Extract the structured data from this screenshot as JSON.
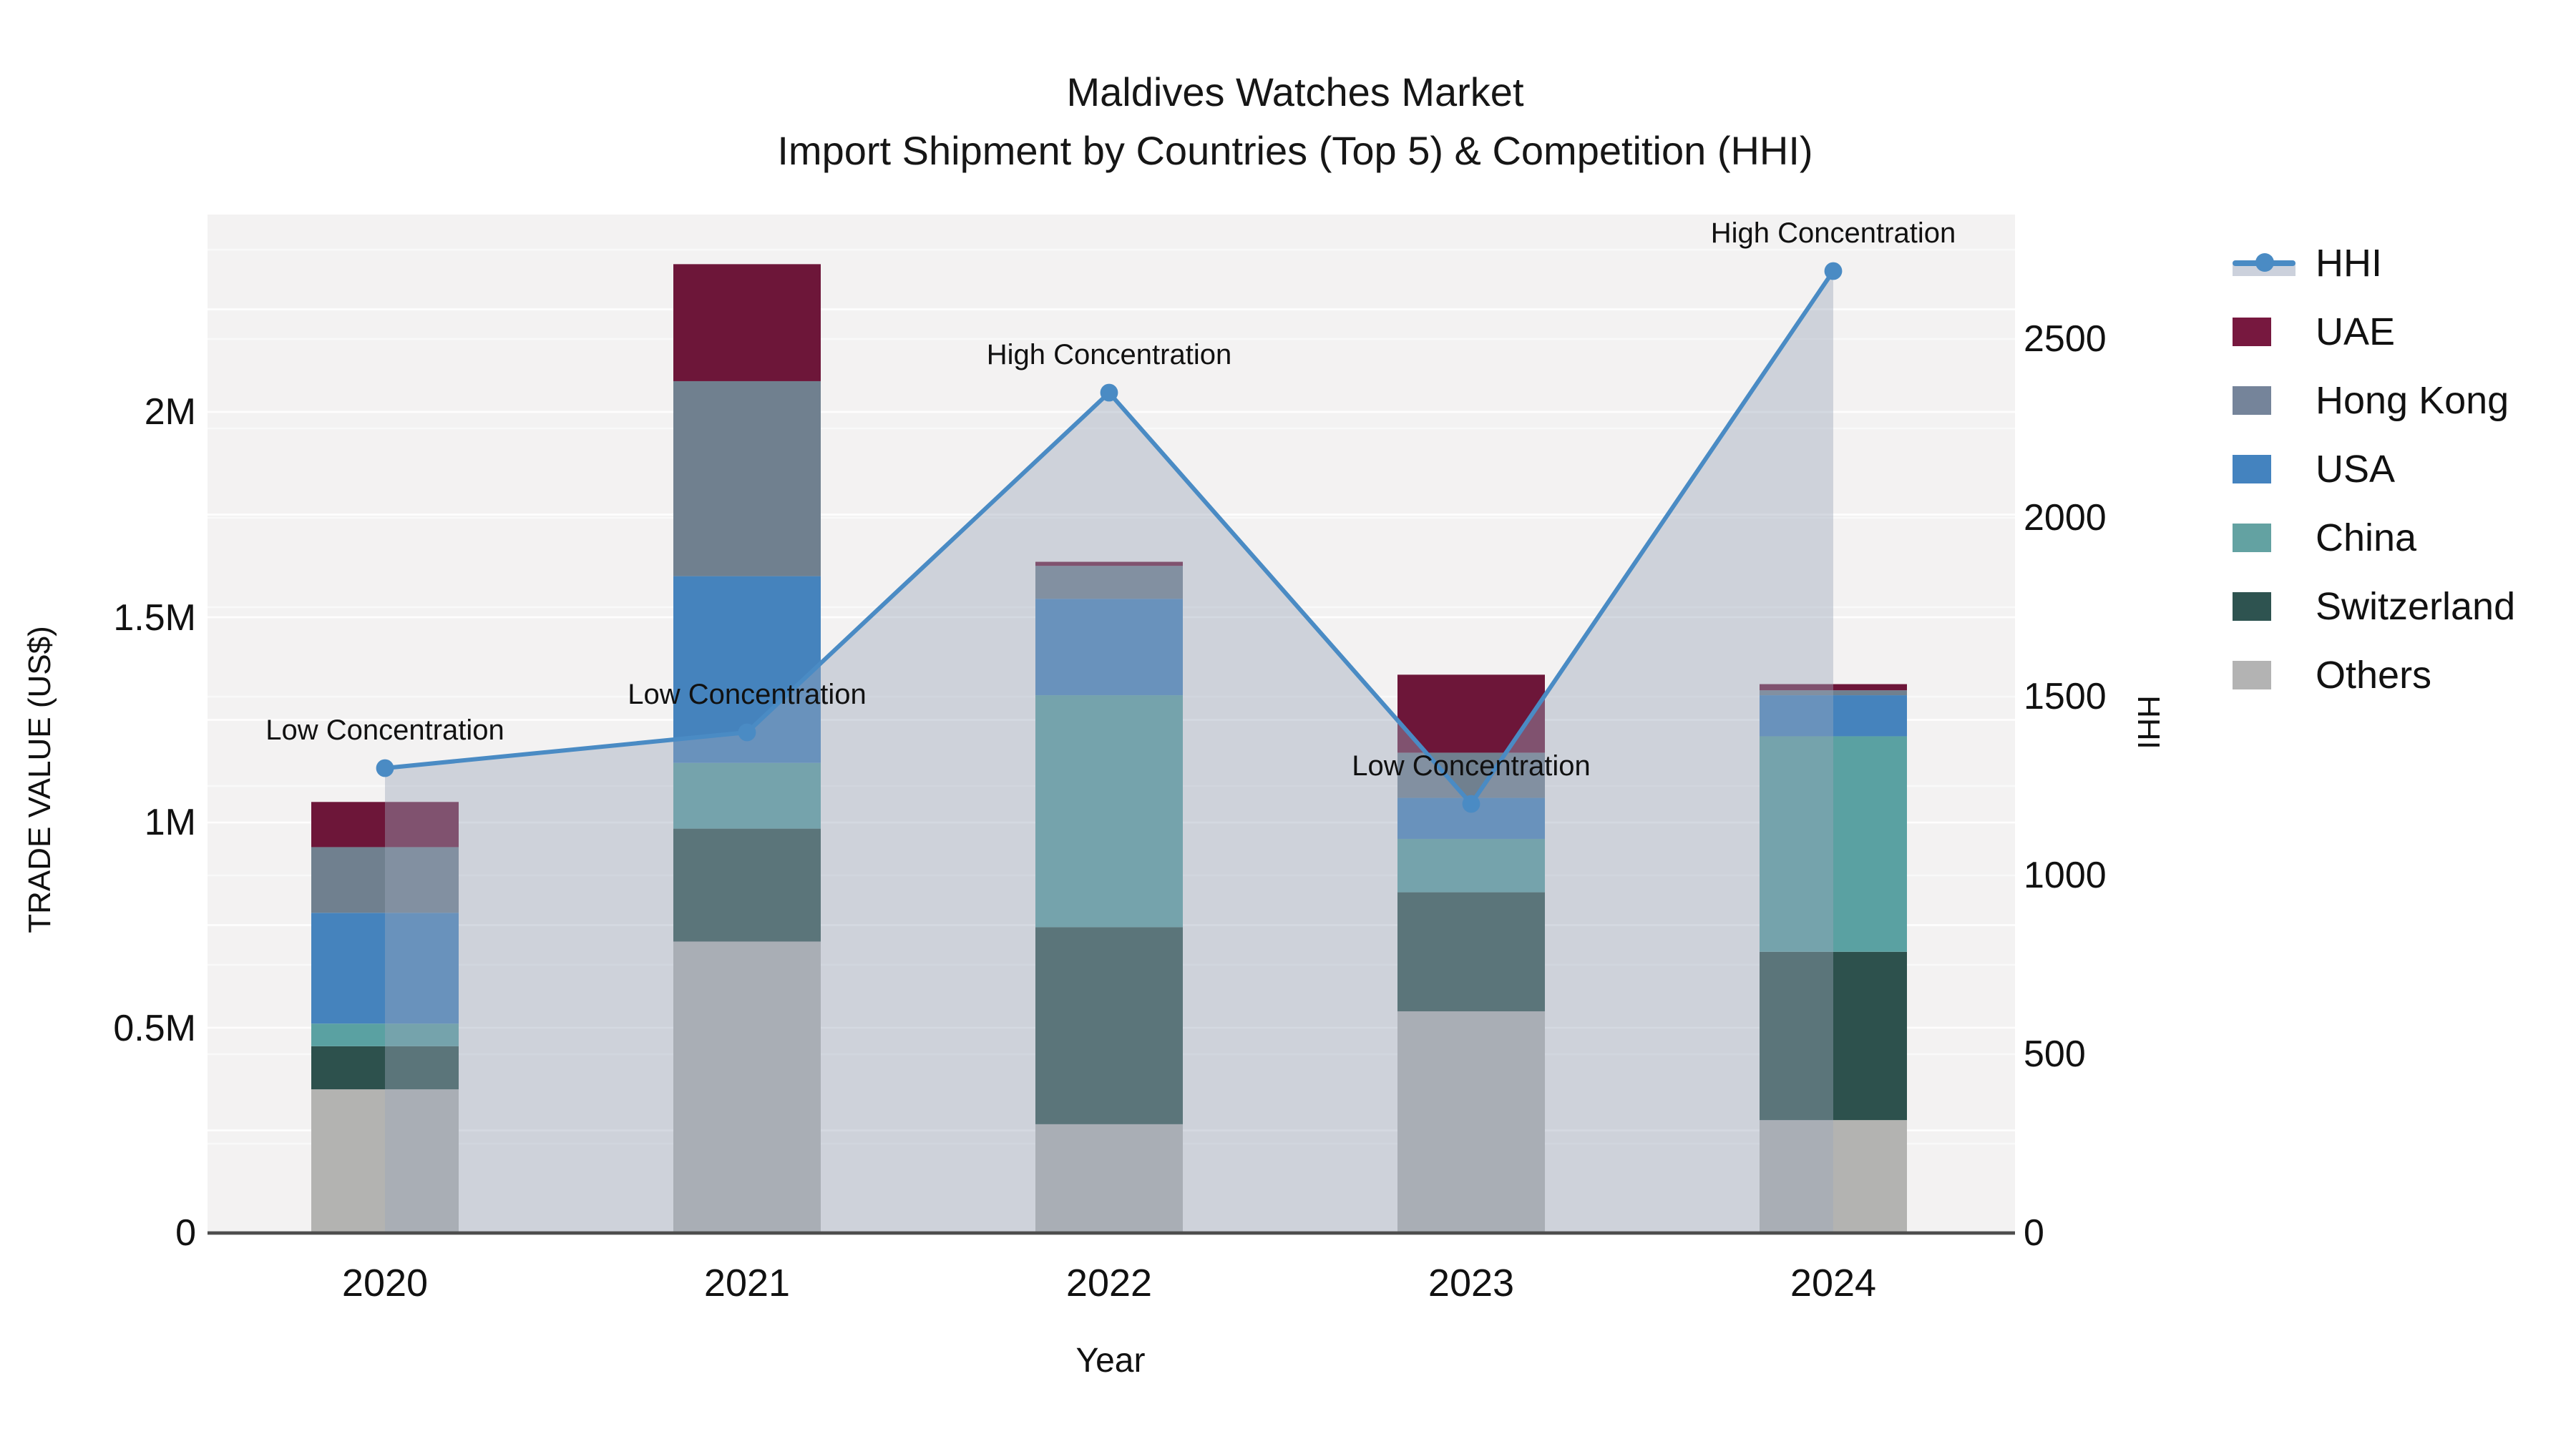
{
  "title": {
    "line1": "Maldives Watches Market",
    "line2": "Import Shipment by Countries (Top 5) & Competition (HHI)"
  },
  "axes": {
    "left": {
      "label": "TRADE VALUE (US$)",
      "ticks": [
        {
          "value": 0,
          "label": "0"
        },
        {
          "value": 500000,
          "label": "0.5M"
        },
        {
          "value": 1000000,
          "label": "1M"
        },
        {
          "value": 1500000,
          "label": "1.5M"
        },
        {
          "value": 2000000,
          "label": "2M"
        }
      ]
    },
    "right": {
      "label": "HHI",
      "ticks": [
        {
          "value": 0,
          "label": "0"
        },
        {
          "value": 500,
          "label": "500"
        },
        {
          "value": 1000,
          "label": "1000"
        },
        {
          "value": 1500,
          "label": "1500"
        },
        {
          "value": 2000,
          "label": "2000"
        },
        {
          "value": 2500,
          "label": "2500"
        }
      ]
    },
    "x": {
      "label": "Year",
      "ticks": [
        "2020",
        "2021",
        "2022",
        "2023",
        "2024"
      ]
    }
  },
  "legend": {
    "items": [
      {
        "label": "HHI",
        "type": "line",
        "color": "#4a8bc4"
      },
      {
        "label": "UAE",
        "type": "swatch",
        "color": "#77183f"
      },
      {
        "label": "Hong Kong",
        "type": "swatch",
        "color": "#75849a"
      },
      {
        "label": "USA",
        "type": "swatch",
        "color": "#4483bf"
      },
      {
        "label": "China",
        "type": "swatch",
        "color": "#63a2a2"
      },
      {
        "label": "Switzerland",
        "type": "swatch",
        "color": "#2e5350"
      },
      {
        "label": "Others",
        "type": "swatch",
        "color": "#b3b3b3"
      }
    ]
  },
  "chart_data": [
    {
      "type": "bar",
      "stacked": true,
      "title": "Maldives Watches Market — Import Shipment by Countries (Top 5) & Competition (HHI)",
      "xlabel": "Year",
      "ylabel": "TRADE VALUE (US$)",
      "ylim": [
        0,
        2490000
      ],
      "grid": true,
      "legend_position": "right",
      "categories": [
        "2020",
        "2021",
        "2022",
        "2023",
        "2024"
      ],
      "series": [
        {
          "name": "Others",
          "color": "#b3b3b1",
          "values": [
            350000,
            710000,
            265000,
            540000,
            275000
          ]
        },
        {
          "name": "Switzerland",
          "color": "#2d514d",
          "values": [
            105000,
            275000,
            480000,
            290000,
            410000
          ]
        },
        {
          "name": "China",
          "color": "#5aa1a2",
          "values": [
            55000,
            160000,
            565000,
            130000,
            525000
          ]
        },
        {
          "name": "USA",
          "color": "#4583bd",
          "values": [
            270000,
            455000,
            235000,
            100000,
            100000
          ]
        },
        {
          "name": "Hong Kong",
          "color": "#70808f",
          "values": [
            160000,
            475000,
            80000,
            110000,
            12000
          ]
        },
        {
          "name": "UAE",
          "color": "#6d1639",
          "values": [
            110000,
            285000,
            10000,
            190000,
            15000
          ]
        }
      ]
    },
    {
      "type": "line",
      "name": "HHI",
      "ylabel": "HHI",
      "ylim": [
        0,
        2856
      ],
      "x": [
        "2020",
        "2021",
        "2022",
        "2023",
        "2024"
      ],
      "values": [
        1300,
        1400,
        2350,
        1200,
        2690
      ],
      "color": "#4a8bc4",
      "marker": "circle",
      "area": true,
      "area_color": "rgba(156,166,186,0.42)",
      "annotations": [
        {
          "x": "2020",
          "text": "Low Concentration"
        },
        {
          "x": "2021",
          "text": "Low Concentration"
        },
        {
          "x": "2022",
          "text": "High Concentration"
        },
        {
          "x": "2023",
          "text": "Low Concentration"
        },
        {
          "x": "2024",
          "text": "High Concentration"
        }
      ]
    }
  ]
}
